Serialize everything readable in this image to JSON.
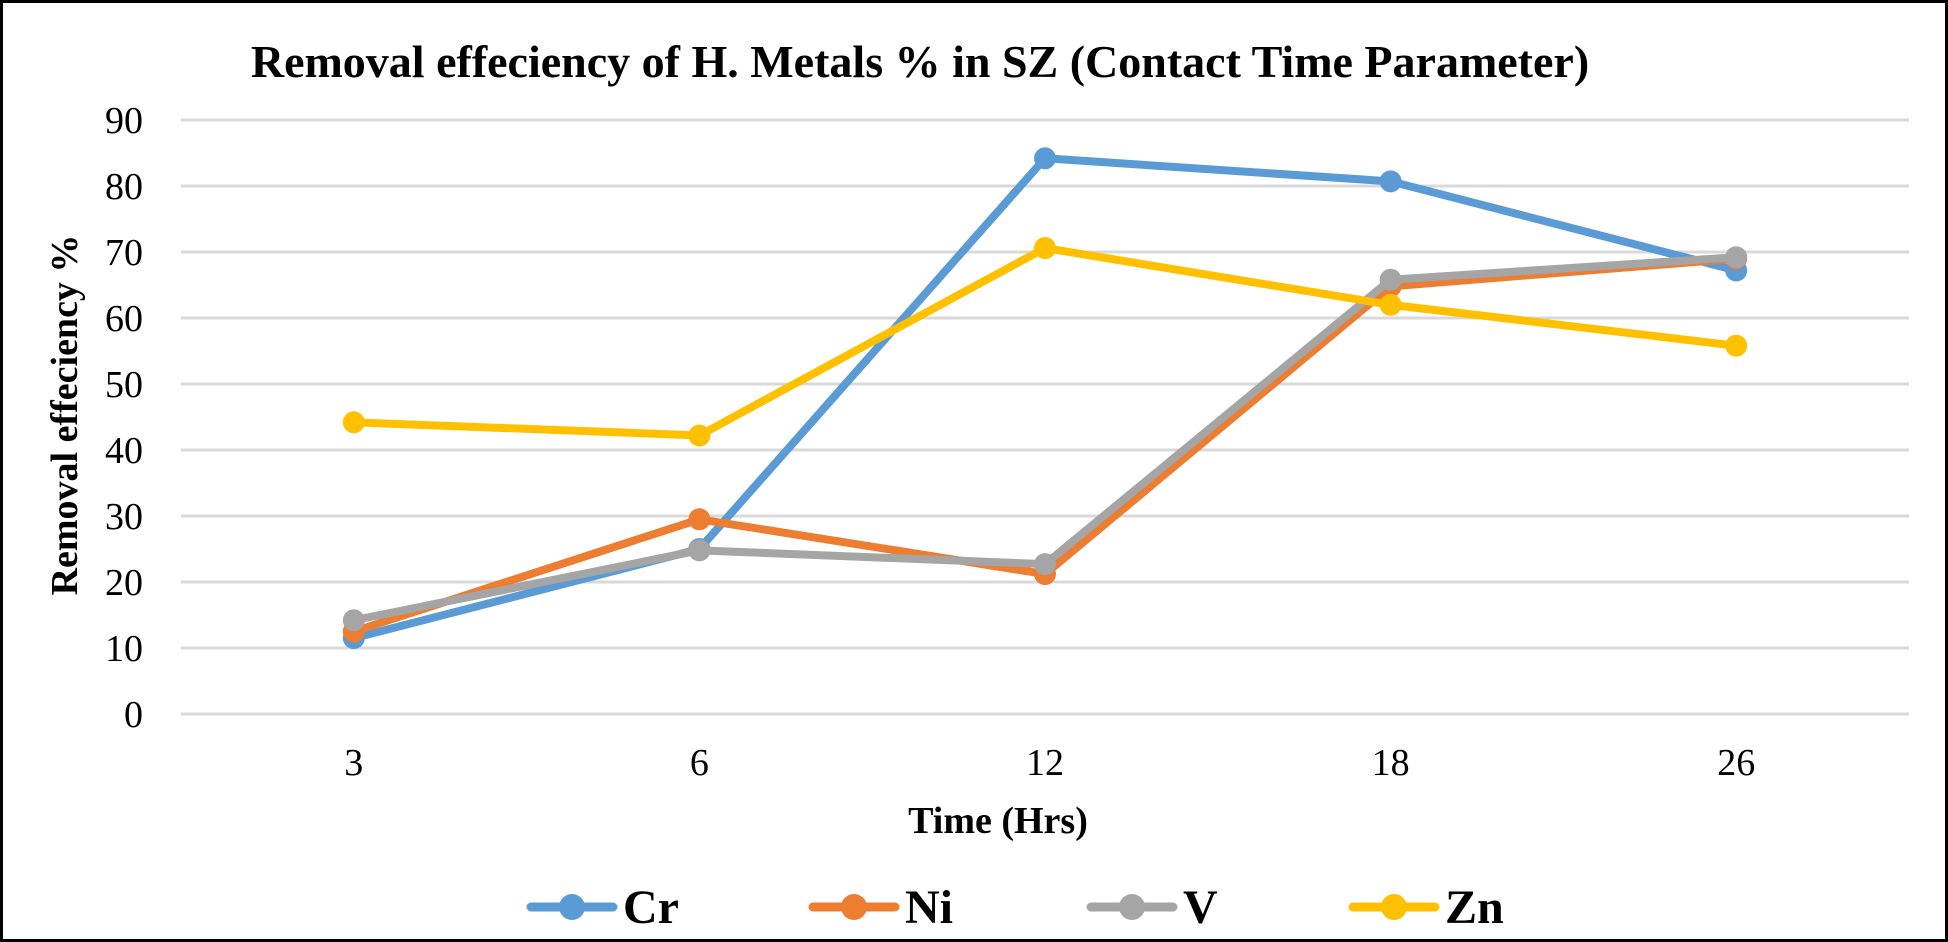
{
  "chart_data": {
    "type": "line",
    "title": "Removal effeciency of H. Metals % in SZ (Contact Time Parameter)",
    "xlabel": "Time (Hrs)",
    "ylabel": "Removal effeciency %",
    "categories": [
      "3",
      "6",
      "12",
      "18",
      "26"
    ],
    "ylim": [
      0,
      90
    ],
    "yticks": [
      "0",
      "10",
      "20",
      "30",
      "40",
      "50",
      "60",
      "70",
      "80",
      "90"
    ],
    "grid": true,
    "legend": "bottom",
    "series": [
      {
        "name": "Cr",
        "color": "#5b9bd5",
        "values": [
          11.5,
          25,
          84.2,
          80.7,
          67.2
        ]
      },
      {
        "name": "Ni",
        "color": "#ed7d31",
        "values": [
          12.5,
          29.5,
          21.2,
          64.8,
          69
        ]
      },
      {
        "name": "V",
        "color": "#a5a5a5",
        "values": [
          14.2,
          24.8,
          22.7,
          65.8,
          69.2
        ]
      },
      {
        "name": "Zn",
        "color": "#ffc000",
        "values": [
          44.2,
          42.2,
          70.6,
          62,
          55.8
        ]
      }
    ]
  }
}
